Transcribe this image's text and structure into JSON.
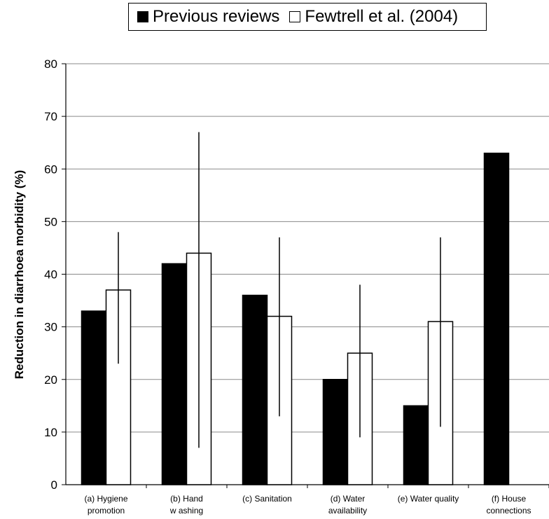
{
  "chart_data": {
    "type": "bar",
    "categories": [
      [
        "(a) Hygiene",
        "promotion"
      ],
      [
        "(b) Hand",
        "w ashing"
      ],
      [
        "(c) Sanitation"
      ],
      [
        "(d) Water",
        "availability"
      ],
      [
        "(e) Water quality"
      ],
      [
        "(f) House",
        "connections"
      ]
    ],
    "series": [
      {
        "name": "Previous reviews",
        "values": [
          33,
          42,
          36,
          20,
          15,
          63
        ],
        "color": "#000000"
      },
      {
        "name": "Fewtrell et al. (2004)",
        "values": [
          37,
          44,
          32,
          25,
          31,
          null
        ],
        "color": "#ffffff",
        "error_low": [
          23,
          7,
          13,
          9,
          11,
          null
        ],
        "error_high": [
          48,
          67,
          47,
          38,
          47,
          null
        ]
      }
    ],
    "ylabel": "Reduction in diarrhoea morbidity (%)",
    "ylim": [
      0,
      80
    ],
    "yticks": [
      0,
      10,
      20,
      30,
      40,
      50,
      60,
      70,
      80
    ],
    "grid": true,
    "legend_position": "top"
  }
}
